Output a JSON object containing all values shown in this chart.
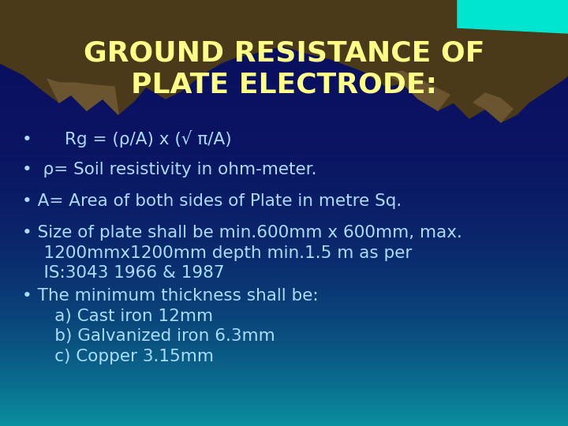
{
  "title_line1": "GROUND RESISTANCE OF",
  "title_line2": "PLATE ELECTRODE:",
  "title_color": "#FFFF88",
  "title_fontsize": 26,
  "bg_top_color": "#0A1060",
  "bg_mid_color": "#0A1A7A",
  "bg_bottom_color": "#0A90A0",
  "bullet_color": "#AADDFF",
  "bullet_fontsize": 15.5,
  "mountain_dark": "#4A3A1A",
  "mountain_mid": "#6B5530",
  "mountain_light": "#7A6040",
  "water_color": "#00E5D0",
  "figsize": [
    7.2,
    5.4
  ],
  "dpi": 100,
  "bullets": [
    "     Rg = (ρ/A) x (√ π/A)",
    " ρ= Soil resistivity in ohm-meter.",
    "A= Area of both sides of Plate in metre Sq.",
    "Size of plate shall be min.600mm x 600mm, max.\n    1200mmx1200mm depth min.1.5 m as per\n    IS:3043 1966 & 1987",
    "The minimum thickness shall be:\n      a) Cast iron 12mm\n      b) Galvanized iron 6.3mm\n      c) Copper 3.15mm"
  ]
}
